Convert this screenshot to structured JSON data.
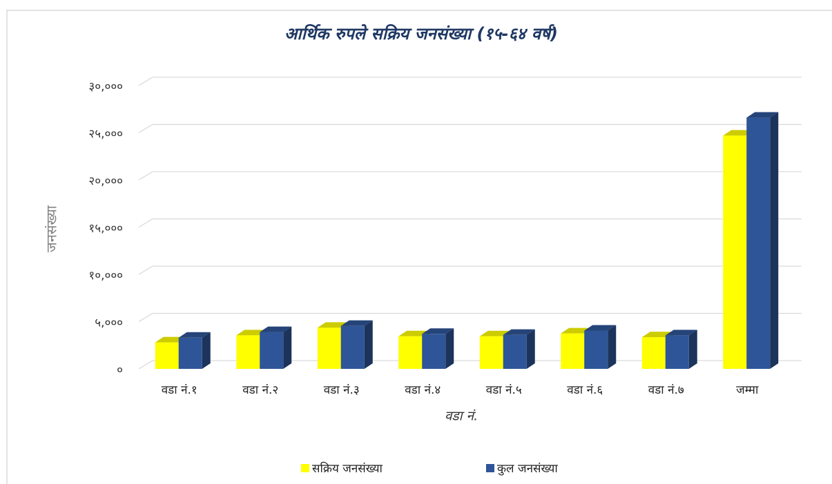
{
  "chart_data": {
    "type": "bar3d",
    "title": "आर्थिक रुपले सक्रिय जनसंख्या (१५-६४ वर्ष)",
    "x_label": "वडा नं.",
    "y_label": "जनसंख्या",
    "categories": [
      "वडा नं.१",
      "वडा नं.२",
      "वडा नं.३",
      "वडा नं.४",
      "वडा नं.५",
      "वडा नं.६",
      "वडा नं.७",
      "जम्मा"
    ],
    "series": [
      {
        "name": "सक्रिय जनसंख्या",
        "color": "#ffff00",
        "values": [
          2800,
          3550,
          4350,
          3450,
          3450,
          3750,
          3350,
          24700
        ]
      },
      {
        "name": "कुल जनसंख्या",
        "color": "#2e5597",
        "values": [
          3300,
          3900,
          4550,
          3700,
          3600,
          4050,
          3550,
          26600
        ]
      }
    ],
    "ylim": [
      0,
      30000
    ],
    "yticks": [
      {
        "value": 0,
        "label": "०"
      },
      {
        "value": 5000,
        "label": "५,०००"
      },
      {
        "value": 10000,
        "label": "१०,०००"
      },
      {
        "value": 15000,
        "label": "१५,०००"
      },
      {
        "value": 20000,
        "label": "२०,०००"
      },
      {
        "value": 25000,
        "label": "२५,०००"
      },
      {
        "value": 30000,
        "label": "३०,०००"
      }
    ],
    "grid": true,
    "legend": "bottom"
  }
}
